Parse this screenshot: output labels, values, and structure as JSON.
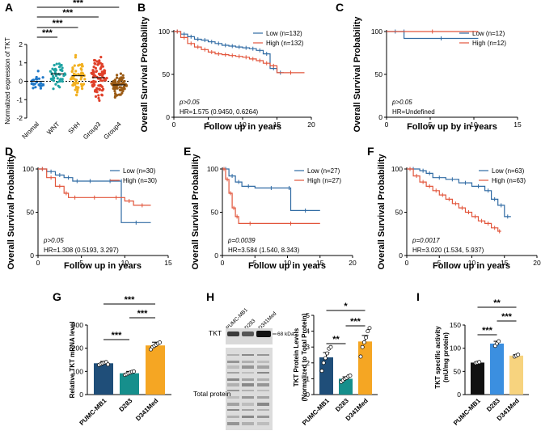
{
  "panel_letters": [
    "A",
    "B",
    "C",
    "D",
    "E",
    "F",
    "G",
    "H",
    "I"
  ],
  "colors": {
    "low": "#2f6aa3",
    "high": "#e2553b",
    "bar_navy": "#1f4e79",
    "bar_teal": "#168f8c",
    "bar_orange": "#f5a623",
    "bar_black": "#111111",
    "bar_blue": "#3b8fe0",
    "bar_pale": "#f7d37e",
    "violin": [
      "#1f78c8",
      "#1fa3a3",
      "#f2b01f",
      "#e0402a",
      "#9a5a14"
    ]
  },
  "chart_data": [
    {
      "panel": "A",
      "type": "scatter",
      "ylabel": "Normalized expression of TKT",
      "categories": [
        "Nromal",
        "WNT",
        "SHH",
        "Group3",
        "Group4"
      ],
      "medians": [
        0.0,
        0.4,
        0.3,
        0.2,
        -0.2
      ],
      "spread": [
        0.8,
        1.0,
        1.4,
        1.6,
        0.8
      ],
      "ylim": [
        -2,
        2
      ],
      "yticks": [
        -2,
        -1,
        0,
        1,
        2
      ],
      "comparisons": [
        {
          "from": 0,
          "to": 4,
          "label": "***"
        },
        {
          "from": 0,
          "to": 3,
          "label": "***"
        },
        {
          "from": 0,
          "to": 2,
          "label": "***"
        },
        {
          "from": 0,
          "to": 1,
          "label": "***"
        }
      ]
    },
    {
      "panel": "B",
      "type": "line",
      "ylabel": "Overall Survival Probability",
      "xlabel": "Follow up in years",
      "xlim": [
        0,
        20
      ],
      "xticks": [
        0,
        5,
        10,
        15,
        20
      ],
      "ylim": [
        0,
        100
      ],
      "yticks": [
        0,
        50,
        100
      ],
      "legend": [
        "Low (n=132)",
        "High (n=132)"
      ],
      "annotations": [
        "p>0.05",
        "HR=1.575 (0.9450, 0.6264)"
      ],
      "series": [
        {
          "name": "Low (n=132)",
          "color": "low",
          "steps": [
            [
              0,
              100
            ],
            [
              1,
              97
            ],
            [
              2,
              94
            ],
            [
              3,
              91
            ],
            [
              4,
              90
            ],
            [
              5,
              88
            ],
            [
              6,
              86
            ],
            [
              7,
              84
            ],
            [
              8,
              83
            ],
            [
              9,
              82
            ],
            [
              10,
              81
            ],
            [
              11,
              80
            ],
            [
              12,
              78
            ],
            [
              13,
              74
            ],
            [
              14,
              57
            ],
            [
              15,
              52
            ],
            [
              16,
              52
            ]
          ]
        },
        {
          "name": "High (n=132)",
          "color": "high",
          "steps": [
            [
              0,
              100
            ],
            [
              1,
              93
            ],
            [
              2,
              86
            ],
            [
              3,
              82
            ],
            [
              4,
              79
            ],
            [
              5,
              76
            ],
            [
              6,
              74
            ],
            [
              7,
              73
            ],
            [
              8,
              72
            ],
            [
              9,
              71
            ],
            [
              10,
              70
            ],
            [
              11,
              68
            ],
            [
              12,
              66
            ],
            [
              13,
              63
            ],
            [
              14,
              60
            ],
            [
              15,
              52
            ],
            [
              19,
              52
            ]
          ]
        }
      ]
    },
    {
      "panel": "C",
      "type": "line",
      "ylabel": "Overall Survival Probability",
      "xlabel": "Follow up by in years",
      "xlim": [
        0,
        15
      ],
      "xticks": [
        0,
        5,
        10,
        15
      ],
      "ylim": [
        0,
        100
      ],
      "yticks": [
        0,
        50,
        100
      ],
      "legend": [
        "Low (n=12)",
        "High (n=12)"
      ],
      "annotations": [
        "p>0.05",
        "HR=Undefined"
      ],
      "series": [
        {
          "name": "Low (n=12)",
          "color": "low",
          "steps": [
            [
              0,
              100
            ],
            [
              2,
              100
            ],
            [
              2,
              92
            ],
            [
              10.5,
              92
            ]
          ]
        },
        {
          "name": "High (n=12)",
          "color": "high",
          "steps": [
            [
              0,
              100
            ],
            [
              10.5,
              100
            ]
          ]
        }
      ]
    },
    {
      "panel": "D",
      "type": "line",
      "ylabel": "Overall Survival Probability",
      "xlabel": "Follow up in years",
      "xlim": [
        0,
        15
      ],
      "xticks": [
        0,
        5,
        10,
        15
      ],
      "ylim": [
        0,
        100
      ],
      "yticks": [
        0,
        50,
        100
      ],
      "legend": [
        "Low (n=30)",
        "High (n=30)"
      ],
      "annotations": [
        "p>0.05",
        "HR=1.308 (0.5193, 3.297)"
      ],
      "series": [
        {
          "name": "Low (n=30)",
          "color": "low",
          "steps": [
            [
              0,
              100
            ],
            [
              1,
              97
            ],
            [
              2,
              93
            ],
            [
              3,
              90
            ],
            [
              4,
              86
            ],
            [
              5,
              86
            ],
            [
              7,
              86
            ],
            [
              9.6,
              86
            ],
            [
              9.6,
              38
            ],
            [
              13,
              38
            ]
          ]
        },
        {
          "name": "High (n=30)",
          "color": "high",
          "steps": [
            [
              0,
              100
            ],
            [
              1,
              90
            ],
            [
              2,
              80
            ],
            [
              3,
              72
            ],
            [
              3.5,
              67
            ],
            [
              5,
              67
            ],
            [
              8,
              67
            ],
            [
              10,
              63
            ],
            [
              11,
              58
            ],
            [
              13,
              58
            ]
          ]
        }
      ]
    },
    {
      "panel": "E",
      "type": "line",
      "ylabel": "Overall Survival Probability",
      "xlabel": "Follow up in years",
      "xlim": [
        0,
        20
      ],
      "xticks": [
        0,
        5,
        10,
        15,
        20
      ],
      "ylim": [
        0,
        100
      ],
      "yticks": [
        0,
        50,
        100
      ],
      "legend": [
        "Low (n=27)",
        "High (n=27)"
      ],
      "annotations": [
        "p=0.0039",
        "HR=3.584 (1.540, 8.343)"
      ],
      "series": [
        {
          "name": "Low (n=27)",
          "color": "low",
          "steps": [
            [
              0,
              100
            ],
            [
              1,
              92
            ],
            [
              2,
              85
            ],
            [
              3,
              80
            ],
            [
              5,
              78
            ],
            [
              10,
              78
            ],
            [
              10.5,
              52
            ],
            [
              15,
              52
            ]
          ]
        },
        {
          "name": "High (n=27)",
          "color": "high",
          "steps": [
            [
              0,
              100
            ],
            [
              0.5,
              88
            ],
            [
              1,
              72
            ],
            [
              1.5,
              55
            ],
            [
              2,
              45
            ],
            [
              2.5,
              37
            ],
            [
              6,
              37
            ],
            [
              15,
              37
            ]
          ]
        }
      ]
    },
    {
      "panel": "F",
      "type": "line",
      "ylabel": "Overall Survival Probability",
      "xlabel": "Follow up in years",
      "xlim": [
        0,
        20
      ],
      "xticks": [
        0,
        5,
        10,
        15,
        20
      ],
      "ylim": [
        0,
        100
      ],
      "yticks": [
        0,
        50,
        100
      ],
      "legend": [
        "Low (n=63)",
        "High (n=63)"
      ],
      "annotations": [
        "p=0.0017",
        "HR=3.020 (1.534, 5.937)"
      ],
      "series": [
        {
          "name": "Low (n=63)",
          "color": "low",
          "steps": [
            [
              0,
              100
            ],
            [
              2,
              98
            ],
            [
              3,
              95
            ],
            [
              4,
              90
            ],
            [
              6,
              88
            ],
            [
              8,
              84
            ],
            [
              10,
              80
            ],
            [
              12,
              75
            ],
            [
              13,
              65
            ],
            [
              14,
              58
            ],
            [
              15,
              45
            ],
            [
              16,
              45
            ]
          ]
        },
        {
          "name": "High (n=63)",
          "color": "high",
          "steps": [
            [
              0,
              100
            ],
            [
              1,
              92
            ],
            [
              2,
              85
            ],
            [
              3,
              80
            ],
            [
              4,
              75
            ],
            [
              5,
              70
            ],
            [
              6,
              65
            ],
            [
              7,
              60
            ],
            [
              8,
              55
            ],
            [
              9,
              50
            ],
            [
              10,
              45
            ],
            [
              11,
              40
            ],
            [
              12,
              37
            ],
            [
              13,
              32
            ],
            [
              14,
              28
            ],
            [
              14.5,
              28
            ]
          ]
        }
      ]
    },
    {
      "panel": "G",
      "type": "bar",
      "ylabel": "Relative TKT mRNA level",
      "categories": [
        "PUMC-MB1",
        "D283",
        "D341Med"
      ],
      "values": [
        135,
        92,
        212
      ],
      "errors": [
        8,
        8,
        14
      ],
      "ylim": [
        0,
        300
      ],
      "yticks": [
        0,
        100,
        200,
        300
      ],
      "bar_colors": [
        "bar_navy",
        "bar_teal",
        "bar_orange"
      ],
      "points": [
        [
          128,
          132,
          135,
          138,
          140,
          130
        ],
        [
          85,
          88,
          92,
          95,
          98,
          100
        ],
        [
          195,
          205,
          210,
          215,
          220,
          225
        ]
      ],
      "comparisons": [
        {
          "from": 0,
          "to": 2,
          "label": "***"
        },
        {
          "from": 1,
          "to": 2,
          "label": "***"
        },
        {
          "from": 0,
          "to": 1,
          "label": "***"
        }
      ]
    },
    {
      "panel": "H",
      "type": "bar",
      "ylabel": "TKT Protein Levels",
      "ylabel2": "(Normalized to Total Protein)",
      "categories": [
        "PUMC-MB1",
        "D283",
        "D341Med"
      ],
      "values": [
        2.35,
        1.0,
        3.35
      ],
      "errors": [
        0.3,
        0.12,
        0.38
      ],
      "ylim": [
        0,
        5
      ],
      "yticks": [
        0,
        1,
        2,
        3,
        4,
        5
      ],
      "bar_colors": [
        "bar_navy",
        "bar_teal",
        "bar_orange"
      ],
      "points": [
        [
          1.5,
          2.0,
          2.3,
          2.6,
          2.9,
          3.0
        ],
        [
          0.8,
          0.9,
          1.0,
          1.05,
          1.15,
          1.2
        ],
        [
          2.4,
          3.0,
          3.3,
          3.6,
          4.0,
          4.2
        ]
      ],
      "comparisons": [
        {
          "from": 0,
          "to": 2,
          "label": "*"
        },
        {
          "from": 1,
          "to": 2,
          "label": "***"
        },
        {
          "from": 0,
          "to": 1,
          "label": "**"
        }
      ]
    },
    {
      "panel": "I",
      "type": "bar",
      "ylabel": "TKT specific activity",
      "ylabel2": "(mU/mg protein)",
      "categories": [
        "PUMC-MB1",
        "D283",
        "D341Med"
      ],
      "values": [
        69,
        110,
        84
      ],
      "errors": [
        1.5,
        5,
        2
      ],
      "ylim": [
        0,
        150
      ],
      "yticks": [
        0,
        50,
        100,
        150
      ],
      "bar_colors": [
        "bar_black",
        "bar_blue",
        "bar_pale"
      ],
      "points": [
        [
          68,
          69,
          70
        ],
        [
          105,
          110,
          115
        ],
        [
          82,
          84,
          86
        ]
      ],
      "comparisons": [
        {
          "from": 0,
          "to": 2,
          "label": "**"
        },
        {
          "from": 1,
          "to": 2,
          "label": "***"
        },
        {
          "from": 0,
          "to": 1,
          "label": "***"
        }
      ]
    }
  ],
  "blot": {
    "lanes": [
      "PUMC-MB1",
      "D283",
      "D341Med"
    ],
    "band_label": "TKT",
    "size_label": "68 kDa",
    "total_label": "Total protein"
  }
}
